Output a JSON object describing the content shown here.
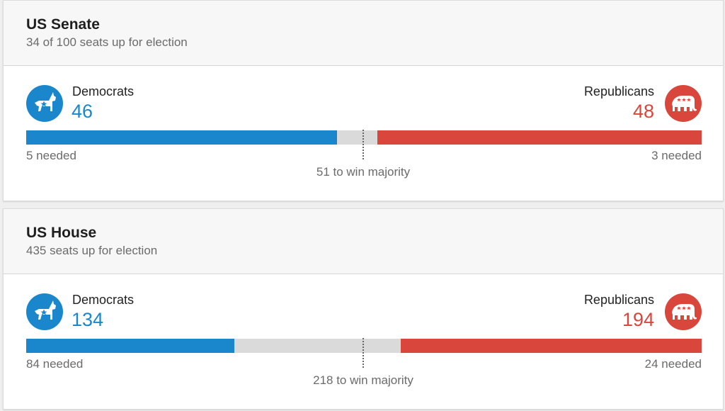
{
  "colors": {
    "democrat": "#1a87cc",
    "republican": "#d9463b",
    "undecided": "#dadada"
  },
  "senate": {
    "title": "US Senate",
    "subtitle": "34 of 100 seats up for election",
    "total": 100,
    "dem": {
      "name": "Democrats",
      "seats": 46,
      "needed": "5 needed",
      "icon": "donkey-icon"
    },
    "rep": {
      "name": "Republicans",
      "seats": 48,
      "needed": "3 needed",
      "icon": "elephant-icon"
    },
    "majority": "51 to win majority"
  },
  "house": {
    "title": "US House",
    "subtitle": "435 seats up for election",
    "total": 435,
    "dem": {
      "name": "Democrats",
      "seats": 134,
      "needed": "84 needed",
      "icon": "donkey-icon"
    },
    "rep": {
      "name": "Republicans",
      "seats": 194,
      "needed": "24 needed",
      "icon": "elephant-icon"
    },
    "majority": "218 to win majority"
  }
}
